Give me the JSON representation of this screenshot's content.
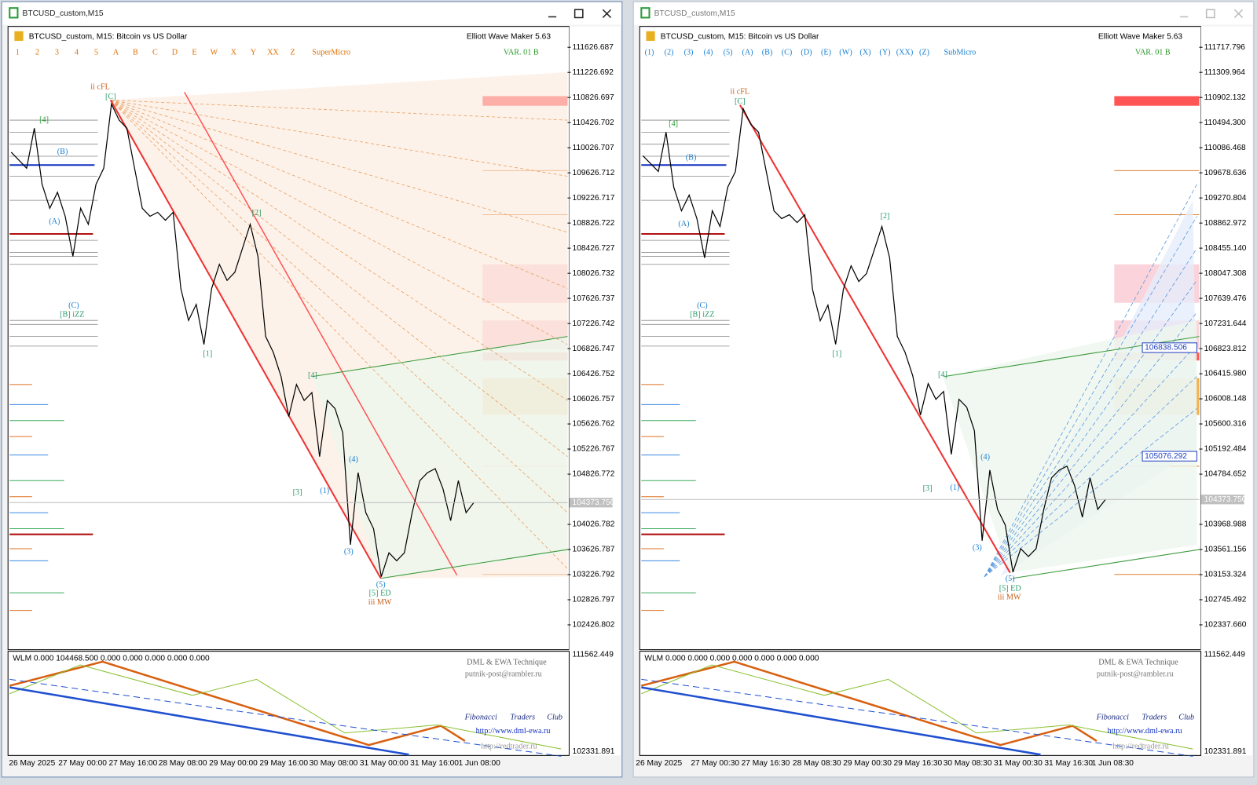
{
  "windows": [
    {
      "title": "BTCUSD_custom,M15",
      "chart_header": "BTCUSD_custom, M15:  Bitcoin vs US Dollar",
      "indicator": "Elliott Wave Maker 5.63",
      "variant": "VAR. 01 B",
      "toolbar": [
        "1",
        "2",
        "3",
        "4",
        "5",
        "A",
        "B",
        "C",
        "D",
        "E",
        "W",
        "X",
        "Y",
        "XX",
        "Z",
        "SuperMicro"
      ],
      "ylim": [
        102044,
        111933
      ],
      "yticks": [
        111626.687,
        111226.692,
        110826.697,
        110426.702,
        110026.707,
        109626.712,
        109226.717,
        108826.722,
        108426.727,
        108026.732,
        107626.737,
        107226.742,
        106826.747,
        106426.752,
        106026.757,
        105626.762,
        105226.767,
        104826.772,
        104026.782,
        103626.787,
        103226.792,
        102826.797,
        102426.802
      ],
      "current_price": {
        "value": 104373.75,
        "label": "104373.750"
      },
      "price_labels": [],
      "wave_labels": [
        "ii cFL",
        "[C]",
        "[4]",
        "(B)",
        "(A)",
        "(C)",
        "[B] iZZ",
        "[1]",
        "[2]",
        "[3]",
        "[4]",
        "(1)",
        "(3)",
        "(4)",
        "(5)",
        "[5] ED",
        "iii MW"
      ],
      "x_labels": [
        "26 May 2025",
        "27 May 00:00",
        "27 May 16:00",
        "28 May 08:00",
        "29 May 00:00",
        "29 May 16:00",
        "30 May 08:00",
        "31 May 00:00",
        "31 May 16:00",
        "1 Jun 08:00"
      ],
      "sub_header": "WLM 0.000 104468.500 0.000 0.000 0.000 0.000 0.000",
      "sub_ticks": [
        "111562.449",
        "102331.891"
      ],
      "credits": [
        "DML & EWA Technique",
        "putnik-post@rambler.ru",
        "Fibonacci",
        "Traders",
        "Club",
        "http://www.dml-ewa.ru",
        "http://redtrader.ru"
      ]
    },
    {
      "title": "BTCUSD_custom,M15",
      "chart_header": "BTCUSD_custom, M15:  Bitcoin vs US Dollar",
      "indicator": "Elliott Wave Maker 5.63",
      "variant": "VAR. 01 B",
      "toolbar": [
        "(1)",
        "(2)",
        "(3)",
        "(4)",
        "(5)",
        "(A)",
        "(B)",
        "(C)",
        "(D)",
        "(E)",
        "(W)",
        "(X)",
        "(Y)",
        "(XX)",
        "(Z)",
        "SubMicro"
      ],
      "ylim": [
        101947,
        112030
      ],
      "yticks": [
        111717.796,
        {
          "value": 111309.964,
          "label": "111309.964"
        },
        {
          "value": 110902.132,
          "label": "110902.132"
        },
        {
          "value": 110494.3,
          "label": "110494.300"
        },
        {
          "value": 110086.468,
          "label": "110086.468"
        },
        {
          "value": 109678.636,
          "label": "109678.636"
        },
        {
          "value": 109270.804,
          "label": "109270.804"
        },
        {
          "value": 108862.972,
          "label": "108862.972"
        },
        {
          "value": 108455.14,
          "label": "108455.140"
        },
        108047.308,
        107639.476,
        107231.644,
        106823.812,
        {
          "value": 106415.98,
          "label": "106415.980"
        },
        106008.148,
        105600.316,
        105192.484,
        104784.652,
        103968.988,
        103561.156,
        103153.324,
        102745.492,
        {
          "value": 102337.66,
          "label": "102337.660"
        }
      ],
      "current_price": {
        "value": 104373.75,
        "label": "104373.750"
      },
      "price_labels": [
        {
          "value": 106838.506,
          "label": "106838.506"
        },
        {
          "value": 105076.292,
          "label": "105076.292"
        }
      ],
      "wave_labels": [
        "ii cFL",
        "[C]",
        "[4]",
        "(B)",
        "(A)",
        "(C)",
        "[B] iZZ",
        "[1]",
        "[2]",
        "[3]",
        "[4]",
        "(1)",
        "(3)",
        "(4)",
        "(5)",
        "[5] ED",
        "iii MW"
      ],
      "x_labels": [
        "26 May 2025",
        "27 May 00:30",
        "27 May 16:30",
        "28 May 08:30",
        "29 May 00:30",
        "29 May 16:30",
        "30 May 08:30",
        "31 May 00:30",
        "31 May 16:30",
        "1 Jun 08:30"
      ],
      "sub_header": "WLM 0.000 0.000 0.000 0.000 0.000 0.000 0.000",
      "sub_ticks": [
        "111562.449",
        "102331.891"
      ],
      "credits": [
        "DML & EWA Technique",
        "putnik-post@rambler.ru",
        "Fibonacci",
        "Traders",
        "Club",
        "http://www.dml-ewa.ru",
        "http://redtrader.ru"
      ]
    }
  ],
  "price_series": [
    109955,
    109828,
    109700,
    110338,
    109445,
    109062,
    109317,
    108935,
    108297,
    109062,
    108807,
    109445,
    109700,
    110721,
    110466,
    110338,
    109700,
    109062,
    108935,
    108998,
    108871,
    108998,
    107786,
    107276,
    107531,
    106893,
    107786,
    108169,
    107914,
    108041,
    108424,
    108807,
    108297,
    107021,
    106765,
    106383,
    105745,
    106255,
    106000,
    106127,
    105107,
    106000,
    105872,
    105489,
    103703,
    104851,
    104213,
    103958,
    103193,
    103575,
    103448,
    103575,
    104213,
    104724,
    104851,
    104915,
    104596,
    104086,
    104724,
    104213,
    104374
  ]
}
